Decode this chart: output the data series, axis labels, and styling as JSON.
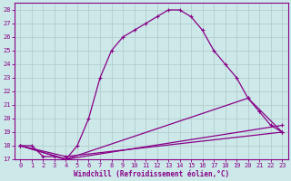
{
  "xlabel": "Windchill (Refroidissement éolien,°C)",
  "xlim": [
    -0.5,
    23.5
  ],
  "ylim": [
    17,
    28.5
  ],
  "yticks": [
    17,
    18,
    19,
    20,
    21,
    22,
    23,
    24,
    25,
    26,
    27,
    28
  ],
  "xticks": [
    0,
    1,
    2,
    3,
    4,
    5,
    6,
    7,
    8,
    9,
    10,
    11,
    12,
    13,
    14,
    15,
    16,
    17,
    18,
    19,
    20,
    21,
    22,
    23
  ],
  "bg_color": "#cce8e8",
  "grid_color": "#b0c8c8",
  "line_color": "#880088",
  "curve1_x": [
    0,
    1,
    2,
    3,
    4,
    5,
    6,
    7,
    8,
    9,
    10,
    11,
    12,
    13,
    14,
    15,
    16,
    17,
    18,
    19,
    20,
    21,
    22,
    23
  ],
  "curve1_y": [
    18,
    18,
    17.2,
    17.2,
    17,
    18,
    20,
    23,
    25,
    26,
    26.5,
    27,
    27.5,
    28,
    28,
    27.5,
    26.5,
    25,
    24,
    23,
    21.5,
    20.5,
    19.5,
    19
  ],
  "curve2_x": [
    0,
    4,
    20,
    23
  ],
  "curve2_y": [
    18,
    17,
    21.5,
    19
  ],
  "curve3_x": [
    0,
    4,
    23
  ],
  "curve3_y": [
    18,
    17,
    19.5
  ],
  "curve4_x": [
    0,
    4,
    23
  ],
  "curve4_y": [
    18,
    17.2,
    19
  ],
  "xlabel_fontsize": 5.5,
  "tick_fontsize": 5,
  "linewidth": 0.9,
  "markersize": 3
}
